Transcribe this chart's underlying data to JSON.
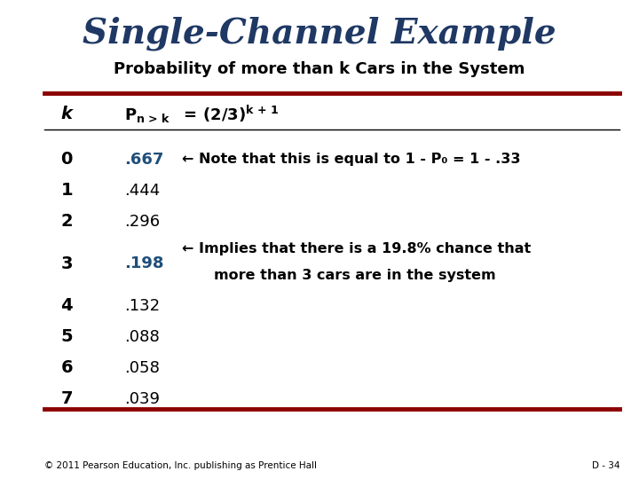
{
  "title": "Single-Channel Example",
  "subtitle": "Probability of more than k Cars in the System",
  "title_color": "#1F3864",
  "subtitle_color": "#000000",
  "bg_color": "#FFFFFF",
  "dark_red": "#8B0000",
  "blue_highlight": "#1F4E79",
  "rows": [
    {
      "k": "0",
      "val": ".667",
      "highlight": true,
      "note": "← Note that this is equal to 1 - P₀ = 1 - .33"
    },
    {
      "k": "1",
      "val": ".444",
      "highlight": false,
      "note": ""
    },
    {
      "k": "2",
      "val": ".296",
      "highlight": false,
      "note": ""
    },
    {
      "k": "3",
      "val": ".198",
      "highlight": true,
      "note": "← Implies that there is a 19.8% chance that||more than 3 cars are in the system"
    },
    {
      "k": "4",
      "val": ".132",
      "highlight": false,
      "note": ""
    },
    {
      "k": "5",
      "val": ".088",
      "highlight": false,
      "note": ""
    },
    {
      "k": "6",
      "val": ".058",
      "highlight": false,
      "note": ""
    },
    {
      "k": "7",
      "val": ".039",
      "highlight": false,
      "note": ""
    }
  ],
  "footer": "© 2011 Pearson Education, Inc. publishing as Prentice Hall",
  "page": "D - 34"
}
